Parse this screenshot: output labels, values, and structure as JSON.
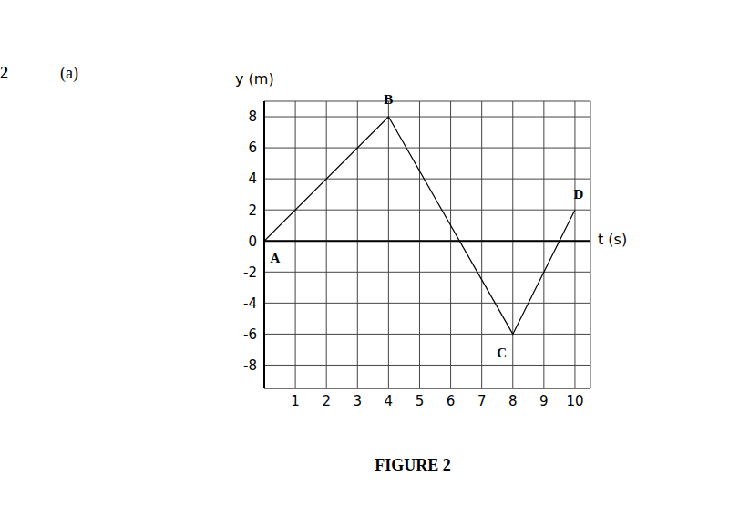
{
  "chart_data": {
    "type": "line",
    "question": "2",
    "part": "(a)",
    "caption": "FIGURE 2",
    "x_label": "t (s)",
    "y_label": "y (m)",
    "x": [
      0,
      4,
      8,
      10
    ],
    "values": [
      0,
      8,
      -6,
      2
    ],
    "point_labels": [
      "A",
      "B",
      "C",
      "D"
    ],
    "color": "#000000",
    "marker": "none",
    "xlim": [
      0,
      10.5
    ],
    "ylim": [
      -9.5,
      9
    ],
    "xticks": [
      1,
      2,
      3,
      4,
      5,
      6,
      7,
      8,
      9,
      10
    ],
    "yticks": [
      -8,
      -6,
      -4,
      -2,
      0,
      2,
      4,
      6,
      8
    ],
    "grid": true
  }
}
